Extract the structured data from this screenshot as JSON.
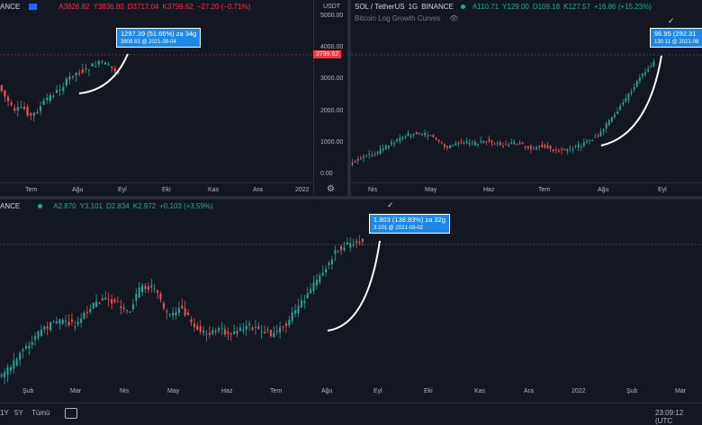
{
  "pane1": {
    "symbol_partial": "ANCE",
    "ohlc": {
      "o": "A3826.82",
      "h": "Y3836.80",
      "l": "D3717.04",
      "c": "K3799.62",
      "chg": "−27.20 (−0.71%)"
    },
    "price_axis": [
      "USDT",
      "5000.00",
      "4000.00",
      "3000.00",
      "2000.00",
      "1000.00",
      "0.00"
    ],
    "current_price": "3799.62",
    "time_axis": [
      "Tem",
      "Ağu",
      "Eyl",
      "Eki",
      "Kas",
      "Ara",
      "2022"
    ],
    "measure_label": "1297.39 (51.66%) za 34g",
    "measure_sub": "3808.63 @ 2021-09-04"
  },
  "pane2": {
    "symbol": "SOL / TetherUS",
    "interval": "1G",
    "exchange": "BINANCE",
    "ohlc": {
      "o": "A110.71",
      "h": "Y129.00",
      "l": "D109.18",
      "c": "K127.57",
      "chg": "+16.86 (+15.23%)"
    },
    "indicator": "Bitcoin Log Growth Curves",
    "time_axis": [
      "Nis",
      "May",
      "Haz",
      "Tem",
      "Ağu",
      "Eyl"
    ],
    "measure_label": "96.95 (292.31",
    "measure_sub": "130.11 @ 2021-08"
  },
  "pane3": {
    "symbol_partial": "ANCE",
    "ohlc": {
      "o": "A2.870",
      "h": "Y3.101",
      "l": "D2.834",
      "c": "K2.972",
      "chg": "+0.103 (+3.59%)"
    },
    "time_axis": [
      "Şub",
      "Mar",
      "Nis",
      "May",
      "Haz",
      "Tem",
      "Ağu",
      "Eyl",
      "Eki",
      "Kas",
      "Ara",
      "2022",
      "Şub",
      "Mar"
    ],
    "measure_label": "1.803 (138.83%) za 32g",
    "measure_sub": "3.101 @ 2021-09-02"
  },
  "bottom": {
    "ranges": [
      "1Y",
      "5Y",
      "Tümü"
    ],
    "clock": "23:09:12 (UTC"
  },
  "colors": {
    "up": "#26a69a",
    "down": "#ef5350",
    "accent": "#1e88e5",
    "bg": "#131722"
  }
}
